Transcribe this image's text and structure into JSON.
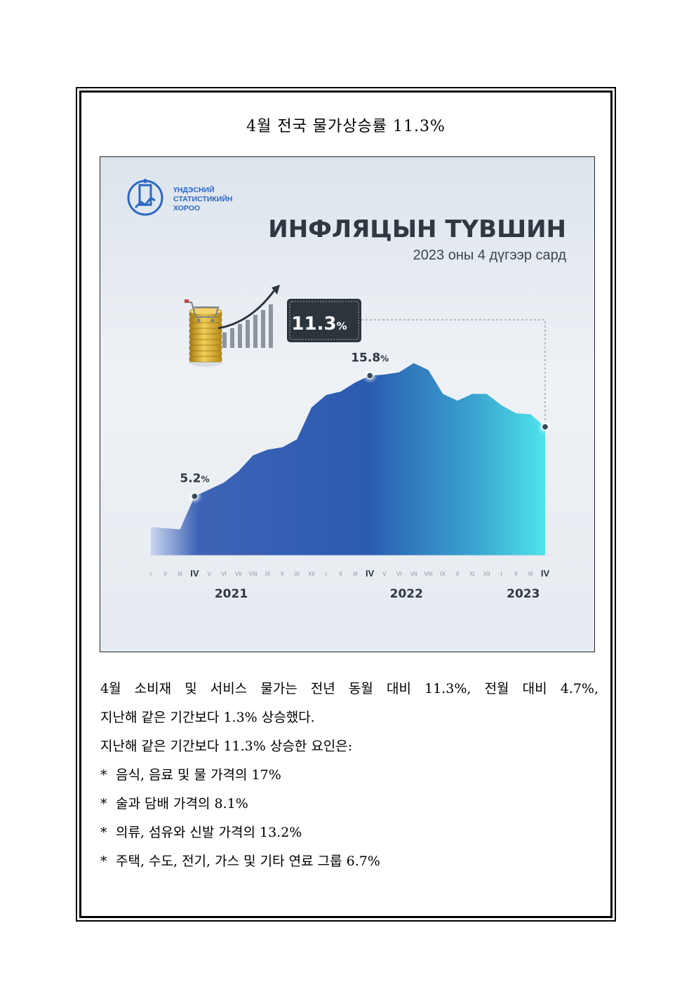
{
  "document": {
    "title": "4월 전국 물가상승률 11.3%",
    "paragraph_line1": "4월 소비재 및 서비스 물가는 전년 동월 대비 11.3%, 전월 대비 4.7%,",
    "paragraph_line2": "지난해 같은 기간보다 1.3% 상승했다.",
    "factors_intro": "지난해 같은 기간보다 11.3% 상승한 요인은:",
    "bullet_symbol": "*",
    "factors": [
      "음식, 음료 및 물 가격의 17%",
      "술과 담배 가격의 8.1%",
      "의류, 섬유와 신발 가격의 13.2%",
      "주택, 수도, 전기, 가스 및 기타 연료 그룹 6.7%"
    ]
  },
  "infographic": {
    "logo_text": [
      "ҮНДЭСНИЙ",
      "СТАТИСТИКИЙН",
      "ХОРОО"
    ],
    "title": "ИНФЛЯЦЫН ТҮВШИН",
    "subtitle": "2023 оны 4 дүгээр сард",
    "badge_value": "11.3",
    "badge_unit": "%",
    "colors": {
      "badge_bg": "#2c343c",
      "area_dark": "#2b58ad",
      "area_light": "#4fe3ea",
      "accent_gold": "#d4a52a"
    },
    "icons": [
      "ministry-logo-icon",
      "coin-stack-icon",
      "shopping-cart-icon",
      "growth-arrow-icon"
    ]
  },
  "chart_data": {
    "type": "area",
    "x": [
      "I",
      "II",
      "III",
      "IV",
      "V",
      "VI",
      "VII",
      "VIII",
      "IX",
      "X",
      "XI",
      "XII",
      "I",
      "II",
      "III",
      "IV",
      "V",
      "VI",
      "VII",
      "VIII",
      "IX",
      "X",
      "XI",
      "XII",
      "I",
      "II",
      "III",
      "IV"
    ],
    "year_labels": [
      {
        "label": "2021",
        "start": 0,
        "end": 11
      },
      {
        "label": "2022",
        "start": 12,
        "end": 23
      },
      {
        "label": "2023",
        "start": 24,
        "end": 27
      }
    ],
    "series": [
      {
        "values": [
          2.5,
          2.4,
          2.3,
          5.2,
          5.8,
          6.4,
          7.4,
          8.8,
          9.3,
          9.5,
          10.2,
          13.0,
          14.1,
          14.4,
          15.2,
          15.8,
          15.9,
          16.1,
          16.9,
          16.3,
          14.2,
          13.6,
          14.2,
          14.2,
          13.2,
          12.5,
          12.4,
          11.3
        ]
      }
    ],
    "annotations": [
      {
        "index": 3,
        "value": "5.2",
        "unit": "%"
      },
      {
        "index": 15,
        "value": "15.8",
        "unit": "%"
      },
      {
        "index": 27,
        "value": "11.3",
        "unit": "%"
      }
    ],
    "highlight_ticks": [
      3,
      15,
      27
    ],
    "ylim": [
      0,
      17.5
    ],
    "grid": false
  }
}
